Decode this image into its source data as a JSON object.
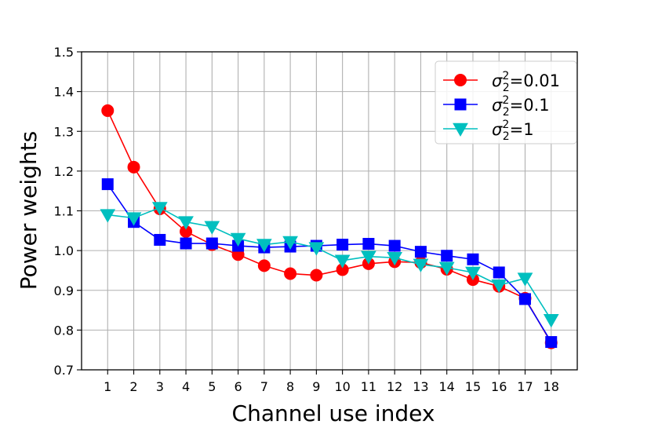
{
  "chart_data": {
    "type": "line",
    "xlabel": "Channel use index",
    "ylabel": "Power weights",
    "x": [
      1,
      2,
      3,
      4,
      5,
      6,
      7,
      8,
      9,
      10,
      11,
      12,
      13,
      14,
      15,
      16,
      17,
      18
    ],
    "xlim": [
      0,
      19
    ],
    "ylim": [
      0.7,
      1.5
    ],
    "yticks": [
      "0.7",
      "0.8",
      "0.9",
      "1.0",
      "1.1",
      "1.2",
      "1.3",
      "1.4",
      "1.5"
    ],
    "grid": true,
    "legend_position": "top-right",
    "series": [
      {
        "name_prefix": "σ",
        "name_sup": "2",
        "name_sub": "2",
        "name_suffix": "=0.01",
        "color": "#ff0000",
        "marker": "circle",
        "values": [
          1.352,
          1.21,
          1.105,
          1.048,
          1.015,
          0.99,
          0.962,
          0.942,
          0.938,
          0.952,
          0.967,
          0.972,
          0.97,
          0.953,
          0.927,
          0.91,
          0.88,
          0.768
        ]
      },
      {
        "name_prefix": "σ",
        "name_sup": "2",
        "name_sub": "2",
        "name_suffix": "=0.1",
        "color": "#0000ff",
        "marker": "square",
        "values": [
          1.167,
          1.072,
          1.027,
          1.018,
          1.018,
          1.012,
          1.008,
          1.01,
          1.012,
          1.015,
          1.017,
          1.012,
          0.997,
          0.987,
          0.978,
          0.945,
          0.878,
          0.77
        ]
      },
      {
        "name_prefix": "σ",
        "name_sup": "2",
        "name_sub": "2",
        "name_suffix": "=1",
        "color": "#00bfbf",
        "marker": "triangle-down",
        "values": [
          1.09,
          1.082,
          1.108,
          1.072,
          1.06,
          1.03,
          1.015,
          1.022,
          1.007,
          0.975,
          0.985,
          0.982,
          0.965,
          0.957,
          0.945,
          0.913,
          0.93,
          0.826
        ]
      }
    ]
  }
}
